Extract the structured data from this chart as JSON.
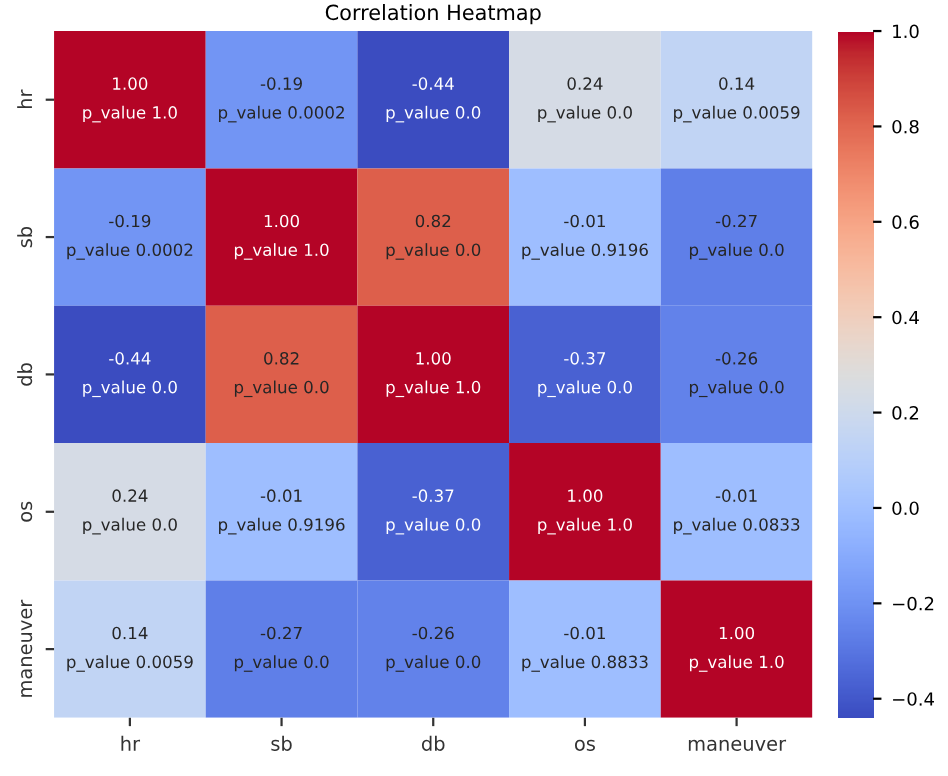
{
  "chart_data": {
    "type": "heatmap",
    "title": "Correlation Heatmap",
    "categories": [
      "hr",
      "sb",
      "db",
      "os",
      "maneuver"
    ],
    "y_categories": [
      "hr",
      "sb",
      "db",
      "os",
      "maneuver"
    ],
    "cells": [
      [
        1.0,
        -0.19,
        -0.44,
        0.24,
        0.14
      ],
      [
        -0.19,
        1.0,
        0.82,
        -0.01,
        -0.27
      ],
      [
        -0.44,
        0.82,
        1.0,
        -0.37,
        -0.26
      ],
      [
        0.24,
        -0.01,
        -0.37,
        1.0,
        -0.01
      ],
      [
        0.14,
        -0.27,
        -0.26,
        -0.01,
        1.0
      ]
    ],
    "cell_labels": [
      [
        "1.00\np_value 1.0",
        "-0.19\np_value 0.0002",
        "-0.44\np_value 0.0",
        "0.24\np_value 0.0",
        "0.14\np_value 0.0059"
      ],
      [
        "-0.19\np_value 0.0002",
        "1.00\np_value 1.0",
        "0.82\np_value 0.0",
        "-0.01\np_value 0.9196",
        "-0.27\np_value 0.0"
      ],
      [
        "-0.44\np_value 0.0",
        "0.82\np_value 0.0",
        "1.00\np_value 1.0",
        "-0.37\np_value 0.0",
        "-0.26\np_value 0.0"
      ],
      [
        "0.24\np_value 0.0",
        "-0.01\np_value 0.9196",
        "-0.37\np_value 0.0",
        "1.00\np_value 1.0",
        "-0.01\np_value 0.0833"
      ],
      [
        "0.14\np_value 0.0059",
        "-0.27\np_value 0.0",
        "-0.26\np_value 0.0",
        "-0.01\np_value 0.8833",
        "1.00\np_value 1.0"
      ]
    ],
    "clim": [
      -0.44,
      1.0
    ],
    "cticks": [
      {
        "value": -0.4,
        "label": "−0.4"
      },
      {
        "value": -0.2,
        "label": "−0.2"
      },
      {
        "value": 0.0,
        "label": "0.0"
      },
      {
        "value": 0.2,
        "label": "0.2"
      },
      {
        "value": 0.4,
        "label": "0.4"
      },
      {
        "value": 0.6,
        "label": "0.6"
      },
      {
        "value": 0.8,
        "label": "0.8"
      },
      {
        "value": 1.0,
        "label": "1.0"
      }
    ]
  }
}
